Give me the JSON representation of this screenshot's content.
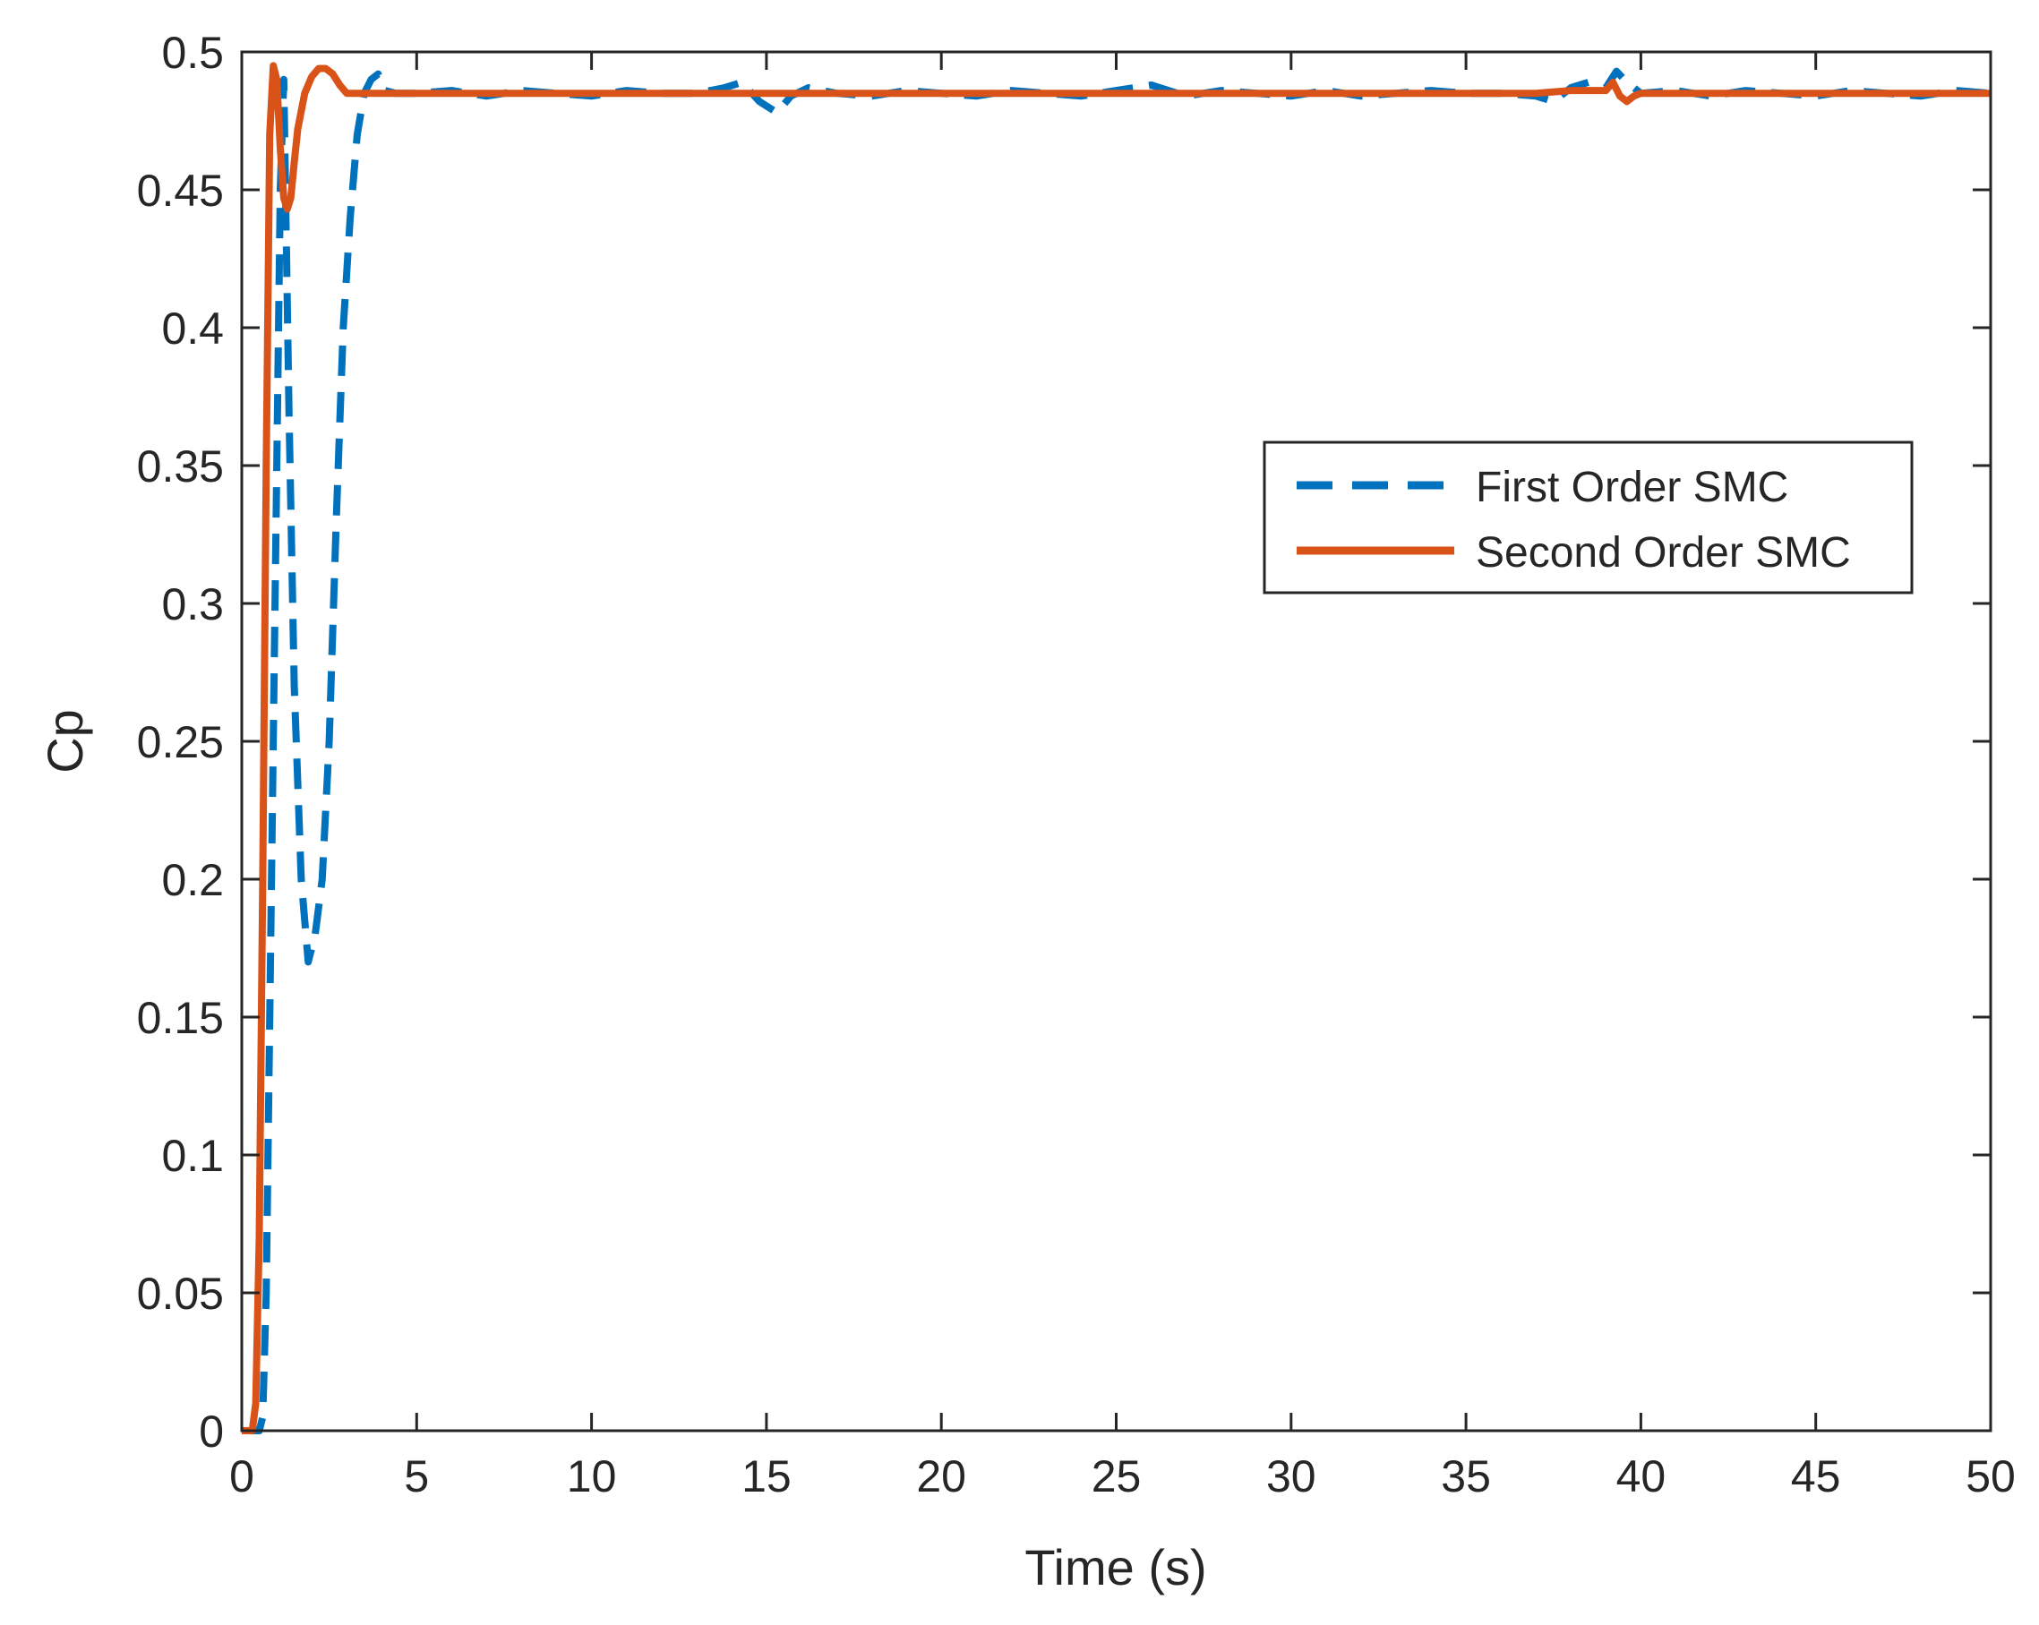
{
  "chart_data": {
    "type": "line",
    "title": "",
    "xlabel": "Time (s)",
    "ylabel": "Cp",
    "xlim": [
      0,
      50
    ],
    "ylim": [
      0,
      0.5
    ],
    "xticks": [
      "0",
      "5",
      "10",
      "15",
      "20",
      "25",
      "30",
      "35",
      "40",
      "45",
      "50"
    ],
    "yticks": [
      "0",
      "0.05",
      "0.1",
      "0.15",
      "0.2",
      "0.25",
      "0.3",
      "0.35",
      "0.4",
      "0.45",
      "0.5"
    ],
    "grid": false,
    "legend_position": "right",
    "series": [
      {
        "name": "First Order SMC",
        "color": "#0072BD",
        "style": "dashed",
        "x": [
          0,
          0.5,
          0.6,
          0.7,
          0.85,
          1.0,
          1.1,
          1.2,
          1.35,
          1.5,
          1.7,
          1.9,
          2.1,
          2.3,
          2.5,
          2.7,
          2.9,
          3.1,
          3.3,
          3.5,
          3.7,
          3.9,
          4.1,
          4.4,
          5,
          6,
          7,
          8,
          9,
          10,
          11,
          12,
          13,
          13.8,
          14.3,
          14.8,
          15.3,
          15.7,
          16.2,
          17,
          18,
          19,
          20,
          21,
          22,
          23,
          24,
          25,
          26,
          27,
          28,
          29,
          30,
          31,
          32,
          33,
          34,
          35,
          36,
          37,
          37.5,
          38,
          38.5,
          39,
          39.3,
          39.6,
          40,
          41,
          42,
          43,
          44,
          45,
          46,
          47,
          48,
          49,
          50
        ],
        "y": [
          0,
          0,
          0.005,
          0.05,
          0.2,
          0.35,
          0.45,
          0.49,
          0.37,
          0.27,
          0.2,
          0.17,
          0.18,
          0.2,
          0.25,
          0.33,
          0.4,
          0.44,
          0.47,
          0.485,
          0.49,
          0.492,
          0.486,
          0.485,
          0.485,
          0.486,
          0.484,
          0.486,
          0.485,
          0.484,
          0.486,
          0.485,
          0.485,
          0.487,
          0.489,
          0.482,
          0.478,
          0.484,
          0.487,
          0.485,
          0.484,
          0.486,
          0.485,
          0.484,
          0.486,
          0.485,
          0.484,
          0.486,
          0.488,
          0.484,
          0.486,
          0.485,
          0.484,
          0.486,
          0.484,
          0.485,
          0.486,
          0.485,
          0.485,
          0.484,
          0.482,
          0.487,
          0.489,
          0.487,
          0.493,
          0.489,
          0.485,
          0.486,
          0.484,
          0.486,
          0.485,
          0.484,
          0.486,
          0.485,
          0.484,
          0.486,
          0.485
        ]
      },
      {
        "name": "Second Order SMC",
        "color": "#D95319",
        "style": "solid",
        "x": [
          0,
          0.3,
          0.4,
          0.5,
          0.6,
          0.7,
          0.8,
          0.9,
          1.0,
          1.1,
          1.2,
          1.3,
          1.4,
          1.5,
          1.6,
          1.8,
          2.0,
          2.2,
          2.4,
          2.6,
          2.8,
          3.0,
          3.2,
          3.5,
          4,
          5,
          10,
          15,
          20,
          25,
          30,
          35,
          37,
          38,
          39,
          39.2,
          39.4,
          39.6,
          39.8,
          40,
          41,
          45,
          50
        ],
        "y": [
          0,
          0,
          0.01,
          0.07,
          0.2,
          0.35,
          0.47,
          0.495,
          0.49,
          0.465,
          0.447,
          0.443,
          0.447,
          0.46,
          0.472,
          0.485,
          0.491,
          0.494,
          0.494,
          0.492,
          0.488,
          0.485,
          0.485,
          0.485,
          0.485,
          0.485,
          0.485,
          0.485,
          0.485,
          0.485,
          0.485,
          0.485,
          0.485,
          0.486,
          0.486,
          0.489,
          0.484,
          0.482,
          0.484,
          0.485,
          0.485,
          0.485,
          0.485
        ]
      }
    ]
  }
}
